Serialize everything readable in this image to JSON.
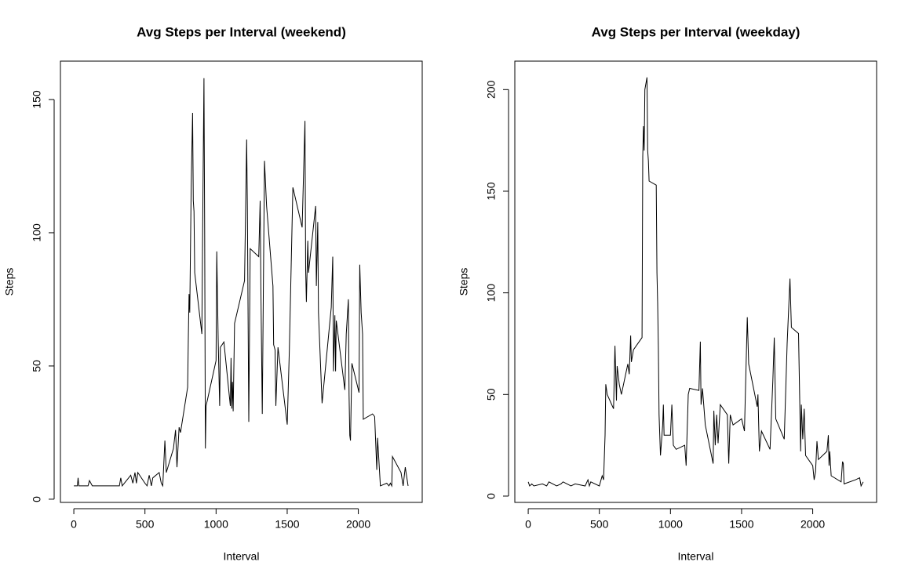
{
  "chart_data": [
    {
      "type": "line",
      "title": "Avg Steps per Interval (weekend)",
      "xlabel": "Interval",
      "ylabel": "Steps",
      "color": "#000000",
      "x": [
        0,
        25,
        30,
        35,
        100,
        110,
        130,
        320,
        330,
        340,
        400,
        415,
        430,
        440,
        450,
        500,
        515,
        530,
        545,
        555,
        600,
        615,
        625,
        640,
        650,
        700,
        715,
        725,
        740,
        750,
        800,
        805,
        810,
        815,
        825,
        835,
        840,
        845,
        850,
        900,
        905,
        915,
        920,
        925,
        930,
        1000,
        1005,
        1015,
        1025,
        1030,
        1055,
        1100,
        1105,
        1110,
        1115,
        1120,
        1130,
        1200,
        1210,
        1215,
        1220,
        1230,
        1240,
        1300,
        1310,
        1315,
        1325,
        1340,
        1355,
        1400,
        1405,
        1415,
        1420,
        1435,
        1500,
        1515,
        1540,
        1605,
        1625,
        1630,
        1635,
        1645,
        1650,
        1700,
        1705,
        1715,
        1720,
        1745,
        1810,
        1820,
        1825,
        1835,
        1840,
        1845,
        1905,
        1915,
        1930,
        1935,
        1940,
        1945,
        1955,
        2005,
        2010,
        2020,
        2030,
        2035,
        2100,
        2115,
        2130,
        2135,
        2155,
        2200,
        2215,
        2225,
        2235,
        2240,
        2300,
        2315,
        2330,
        2350
      ],
      "values": [
        5,
        5,
        8,
        5,
        5,
        7,
        5,
        5,
        8,
        5,
        9,
        6,
        10,
        6,
        10,
        6,
        5,
        9,
        5,
        8,
        10,
        6,
        5,
        22,
        10,
        19,
        26,
        12,
        27,
        25,
        42,
        61,
        77,
        70,
        117,
        145,
        112,
        108,
        85,
        62,
        97,
        158,
        100,
        19,
        35,
        52,
        93,
        60,
        35,
        57,
        59,
        35,
        53,
        34,
        44,
        33,
        66,
        82,
        117,
        135,
        110,
        29,
        94,
        91,
        112,
        80,
        32,
        127,
        110,
        80,
        58,
        56,
        35,
        57,
        28,
        56,
        117,
        102,
        142,
        86,
        74,
        97,
        85,
        110,
        80,
        104,
        70,
        36,
        72,
        91,
        48,
        69,
        48,
        67,
        41,
        62,
        75,
        39,
        24,
        22,
        51,
        40,
        88,
        70,
        62,
        30,
        32,
        31,
        11,
        23,
        5,
        6,
        5,
        6,
        5,
        16,
        10,
        5,
        12,
        5
      ],
      "xlim": [
        -94.2,
        2449.2
      ],
      "ylim": [
        -1.2,
        164.4
      ],
      "xticks": [
        0,
        500,
        1000,
        1500,
        2000
      ],
      "yticks": [
        0,
        50,
        100,
        150
      ]
    },
    {
      "type": "line",
      "title": "Avg Steps per Interval (weekday)",
      "xlabel": "Interval",
      "ylabel": "Steps",
      "color": "#000000",
      "x": [
        0,
        10,
        25,
        40,
        100,
        130,
        145,
        200,
        230,
        245,
        300,
        330,
        400,
        420,
        430,
        440,
        500,
        520,
        530,
        540,
        545,
        555,
        600,
        610,
        620,
        625,
        640,
        655,
        700,
        710,
        720,
        725,
        740,
        800,
        805,
        810,
        815,
        820,
        835,
        840,
        845,
        850,
        900,
        905,
        910,
        915,
        920,
        930,
        945,
        950,
        955,
        1000,
        1010,
        1020,
        1040,
        1100,
        1110,
        1115,
        1125,
        1135,
        1200,
        1210,
        1215,
        1225,
        1245,
        1300,
        1305,
        1315,
        1325,
        1335,
        1350,
        1400,
        1410,
        1420,
        1440,
        1500,
        1520,
        1540,
        1550,
        1610,
        1615,
        1625,
        1640,
        1700,
        1720,
        1730,
        1740,
        1800,
        1820,
        1840,
        1850,
        1900,
        1915,
        1920,
        1930,
        1940,
        1950,
        2000,
        2010,
        2020,
        2030,
        2040,
        2100,
        2110,
        2115,
        2120,
        2130,
        2200,
        2210,
        2215,
        2220,
        2300,
        2330,
        2340,
        2355
      ],
      "values": [
        7,
        5,
        6,
        5,
        6,
        5,
        7,
        5,
        6,
        7,
        5,
        6,
        5,
        8,
        5,
        7,
        5,
        10,
        8,
        30,
        55,
        50,
        43,
        74,
        47,
        64,
        55,
        50,
        65,
        60,
        79,
        66,
        72,
        78,
        167,
        182,
        170,
        200,
        206,
        170,
        165,
        155,
        153,
        110,
        95,
        73,
        40,
        20,
        35,
        45,
        30,
        30,
        45,
        25,
        23,
        25,
        15,
        27,
        50,
        53,
        52,
        76,
        45,
        53,
        35,
        16,
        42,
        25,
        40,
        26,
        45,
        40,
        16,
        40,
        35,
        38,
        32,
        88,
        65,
        44,
        50,
        22,
        32,
        23,
        57,
        78,
        38,
        28,
        75,
        107,
        83,
        80,
        22,
        45,
        28,
        43,
        20,
        15,
        8,
        12,
        27,
        18,
        22,
        30,
        15,
        22,
        10,
        7,
        17,
        16,
        6,
        8,
        9,
        5,
        7
      ],
      "xlim": [
        -94.2,
        2449.2
      ],
      "ylim": [
        -3.1,
        214.0
      ],
      "xticks": [
        0,
        500,
        1000,
        1500,
        2000
      ],
      "yticks": [
        0,
        50,
        100,
        150,
        200
      ]
    }
  ]
}
